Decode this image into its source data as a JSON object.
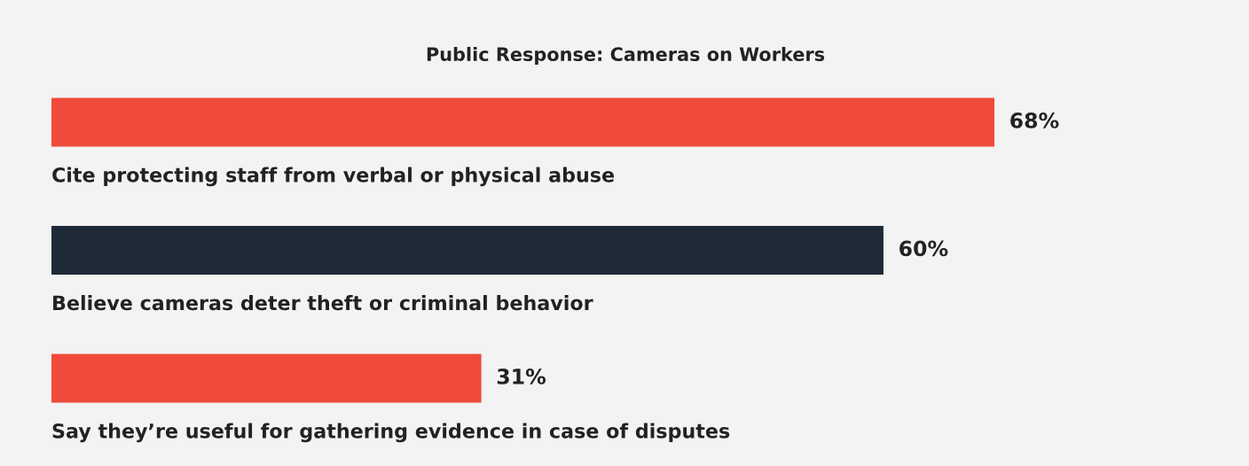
{
  "chart_data": {
    "type": "bar",
    "orientation": "horizontal",
    "title": "Public Response: Cameras on Workers",
    "categories": [
      "Cite protecting staff from verbal or physical abuse",
      "Believe cameras deter theft or criminal behavior",
      "Say they’re useful for gathering evidence in case of disputes"
    ],
    "values": [
      68,
      60,
      31
    ],
    "colors": [
      "#f04a3a",
      "#1f2a38",
      "#f04a3a"
    ],
    "value_labels": [
      "68%",
      "60%",
      "31%"
    ]
  }
}
